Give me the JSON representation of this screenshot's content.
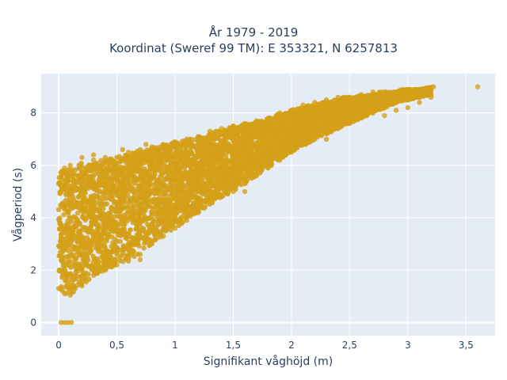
{
  "chart_data": {
    "type": "scatter",
    "title_lines": [
      "År 1979 - 2019",
      "Koordinat (Sweref 99 TM): E 353321, N 6257813"
    ],
    "xlabel": "Signifikant våghöjd (m)",
    "ylabel": "Vågperiod (s)",
    "xlim": [
      -0.15,
      3.75
    ],
    "ylim": [
      -0.5,
      9.5
    ],
    "x_ticks": [
      0,
      0.5,
      1,
      1.5,
      2,
      2.5,
      3,
      3.5
    ],
    "x_tick_labels": [
      "0",
      "0,5",
      "1",
      "1,5",
      "2",
      "2,5",
      "3",
      "3,5"
    ],
    "y_ticks": [
      0,
      2,
      4,
      6,
      8
    ],
    "y_tick_labels": [
      "0",
      "2",
      "4",
      "6",
      "8"
    ],
    "grid": true,
    "legend": "none",
    "marker_color": "#D4A017",
    "background": "#E5ECF6",
    "series": [
      {
        "values": [
          [
            0.02,
            0
          ],
          [
            0.05,
            0
          ],
          [
            0.08,
            0
          ],
          [
            0.11,
            0
          ],
          [
            0.0,
            1.3
          ],
          [
            0.05,
            1.1
          ],
          [
            0.1,
            1.05
          ],
          [
            0.2,
            1.4
          ],
          [
            0.3,
            1.8
          ],
          [
            0.4,
            2.0
          ],
          [
            0.5,
            2.2
          ],
          [
            0.6,
            2.35
          ],
          [
            0.7,
            2.6
          ],
          [
            0.8,
            3.0
          ],
          [
            0.9,
            3.3
          ],
          [
            1.0,
            3.6
          ],
          [
            1.1,
            3.9
          ],
          [
            1.2,
            4.2
          ],
          [
            1.3,
            4.6
          ],
          [
            1.4,
            4.8
          ],
          [
            1.5,
            5.0
          ],
          [
            1.6,
            5.3
          ],
          [
            1.7,
            5.6
          ],
          [
            1.8,
            5.9
          ],
          [
            1.9,
            6.2
          ],
          [
            2.0,
            6.5
          ],
          [
            2.1,
            6.8
          ],
          [
            2.2,
            7.0
          ],
          [
            2.3,
            7.2
          ],
          [
            2.4,
            7.4
          ],
          [
            2.5,
            7.6
          ],
          [
            2.6,
            7.8
          ],
          [
            2.7,
            8.0
          ],
          [
            2.8,
            8.2
          ],
          [
            2.9,
            8.4
          ],
          [
            3.0,
            8.5
          ],
          [
            3.1,
            8.6
          ],
          [
            3.2,
            8.7
          ],
          [
            0.0,
            5.3
          ],
          [
            0.05,
            5.9
          ],
          [
            0.1,
            6.0
          ],
          [
            0.2,
            6.3
          ],
          [
            0.3,
            6.2
          ],
          [
            0.4,
            6.3
          ],
          [
            0.5,
            6.3
          ],
          [
            0.6,
            6.5
          ],
          [
            0.7,
            6.6
          ],
          [
            0.8,
            6.7
          ],
          [
            0.9,
            6.8
          ],
          [
            1.0,
            6.9
          ],
          [
            1.1,
            7.0
          ],
          [
            1.2,
            7.1
          ],
          [
            1.3,
            7.3
          ],
          [
            1.4,
            7.4
          ],
          [
            1.5,
            7.5
          ],
          [
            1.6,
            7.6
          ],
          [
            1.7,
            7.7
          ],
          [
            1.8,
            7.8
          ],
          [
            1.9,
            8.0
          ],
          [
            2.0,
            8.1
          ],
          [
            2.1,
            8.3
          ],
          [
            2.2,
            8.4
          ],
          [
            2.3,
            8.5
          ],
          [
            2.4,
            8.6
          ],
          [
            2.5,
            8.6
          ],
          [
            2.6,
            8.7
          ],
          [
            2.7,
            8.8
          ],
          [
            2.8,
            8.8
          ],
          [
            2.9,
            8.8
          ],
          [
            3.0,
            8.9
          ],
          [
            3.1,
            8.9
          ],
          [
            3.22,
            9.0
          ],
          [
            3.6,
            9.0
          ],
          [
            0.4,
            2.4
          ],
          [
            0.5,
            2.6
          ],
          [
            0.6,
            2.9
          ],
          [
            0.7,
            2.4
          ],
          [
            1.6,
            5.0
          ],
          [
            0.9,
            3.7
          ],
          [
            1.3,
            4.6
          ],
          [
            1.4,
            4.8
          ],
          [
            0.3,
            6.4
          ],
          [
            0.55,
            6.6
          ],
          [
            0.75,
            6.8
          ],
          [
            0.85,
            5.3
          ],
          [
            1.05,
            4.0
          ],
          [
            1.3,
            5.0
          ],
          [
            2.3,
            7.0
          ],
          [
            2.8,
            7.9
          ],
          [
            2.9,
            8.1
          ],
          [
            3.0,
            8.2
          ],
          [
            3.1,
            8.4
          ],
          [
            3.2,
            8.6
          ]
        ],
        "band_spine": [
          [
            0.0,
            1.3,
            5.8
          ],
          [
            0.05,
            1.1,
            5.8
          ],
          [
            0.1,
            1.05,
            5.9
          ],
          [
            0.15,
            1.2,
            6.0
          ],
          [
            0.2,
            1.4,
            6.1
          ],
          [
            0.25,
            1.6,
            6.1
          ],
          [
            0.3,
            1.75,
            6.2
          ],
          [
            0.35,
            1.9,
            6.2
          ],
          [
            0.4,
            2.0,
            6.2
          ],
          [
            0.45,
            2.1,
            6.3
          ],
          [
            0.5,
            2.2,
            6.3
          ],
          [
            0.55,
            2.3,
            6.4
          ],
          [
            0.6,
            2.4,
            6.4
          ],
          [
            0.65,
            2.5,
            6.5
          ],
          [
            0.7,
            2.65,
            6.6
          ],
          [
            0.75,
            2.8,
            6.6
          ],
          [
            0.8,
            3.0,
            6.7
          ],
          [
            0.85,
            3.15,
            6.7
          ],
          [
            0.9,
            3.3,
            6.8
          ],
          [
            0.95,
            3.45,
            6.8
          ],
          [
            1.0,
            3.6,
            6.9
          ],
          [
            1.05,
            3.75,
            6.9
          ],
          [
            1.1,
            3.9,
            7.0
          ],
          [
            1.15,
            4.05,
            7.0
          ],
          [
            1.2,
            4.2,
            7.1
          ],
          [
            1.25,
            4.35,
            7.2
          ],
          [
            1.3,
            4.5,
            7.2
          ],
          [
            1.35,
            4.65,
            7.3
          ],
          [
            1.4,
            4.8,
            7.3
          ],
          [
            1.45,
            4.9,
            7.4
          ],
          [
            1.5,
            5.0,
            7.5
          ],
          [
            1.55,
            5.15,
            7.5
          ],
          [
            1.6,
            5.3,
            7.6
          ],
          [
            1.65,
            5.45,
            7.6
          ],
          [
            1.7,
            5.6,
            7.7
          ],
          [
            1.75,
            5.75,
            7.7
          ],
          [
            1.8,
            5.9,
            7.8
          ],
          [
            1.85,
            6.05,
            7.9
          ],
          [
            1.9,
            6.2,
            8.0
          ],
          [
            1.95,
            6.35,
            8.0
          ],
          [
            2.0,
            6.5,
            8.1
          ],
          [
            2.05,
            6.6,
            8.2
          ],
          [
            2.1,
            6.7,
            8.2
          ],
          [
            2.15,
            6.85,
            8.3
          ],
          [
            2.2,
            7.0,
            8.3
          ],
          [
            2.25,
            7.1,
            8.4
          ],
          [
            2.3,
            7.2,
            8.4
          ],
          [
            2.35,
            7.3,
            8.5
          ],
          [
            2.4,
            7.4,
            8.5
          ],
          [
            2.45,
            7.5,
            8.6
          ],
          [
            2.5,
            7.6,
            8.6
          ],
          [
            2.55,
            7.7,
            8.6
          ],
          [
            2.6,
            7.8,
            8.7
          ],
          [
            2.65,
            7.9,
            8.7
          ],
          [
            2.7,
            8.0,
            8.7
          ],
          [
            2.75,
            8.1,
            8.8
          ],
          [
            2.8,
            8.2,
            8.8
          ],
          [
            2.85,
            8.3,
            8.8
          ],
          [
            2.9,
            8.4,
            8.8
          ],
          [
            2.95,
            8.45,
            8.9
          ],
          [
            3.0,
            8.5,
            8.9
          ],
          [
            3.05,
            8.55,
            8.9
          ],
          [
            3.1,
            8.6,
            8.9
          ],
          [
            3.15,
            8.65,
            8.95
          ],
          [
            3.2,
            8.7,
            9.0
          ]
        ]
      }
    ]
  }
}
